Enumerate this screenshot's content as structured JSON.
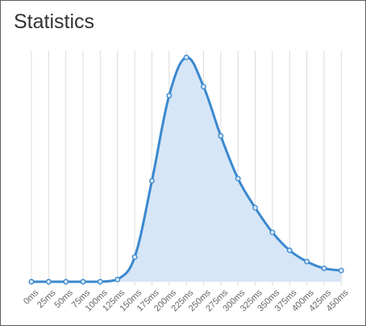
{
  "panel": {
    "title": "Statistics"
  },
  "colors": {
    "line": "#3b88cf",
    "fill": "#d6e6f6",
    "grid": "#dcdcdc",
    "tick_text": "#666666"
  },
  "chart_data": {
    "type": "area",
    "title": "",
    "xlabel": "",
    "ylabel": "",
    "grid": true,
    "smooth": true,
    "x": [
      "0ms",
      "25ms",
      "50ms",
      "75ms",
      "100ms",
      "125ms",
      "150ms",
      "175ms",
      "200ms",
      "225ms",
      "250ms",
      "275ms",
      "300ms",
      "325ms",
      "350ms",
      "375ms",
      "400ms",
      "425ms",
      "450ms"
    ],
    "series": [
      {
        "values": [
          0,
          0,
          0,
          0,
          0,
          1,
          11,
          45,
          83,
          100,
          87,
          65,
          46,
          33,
          22,
          14,
          9,
          6,
          5
        ]
      }
    ],
    "ylim": [
      0,
      103
    ]
  }
}
